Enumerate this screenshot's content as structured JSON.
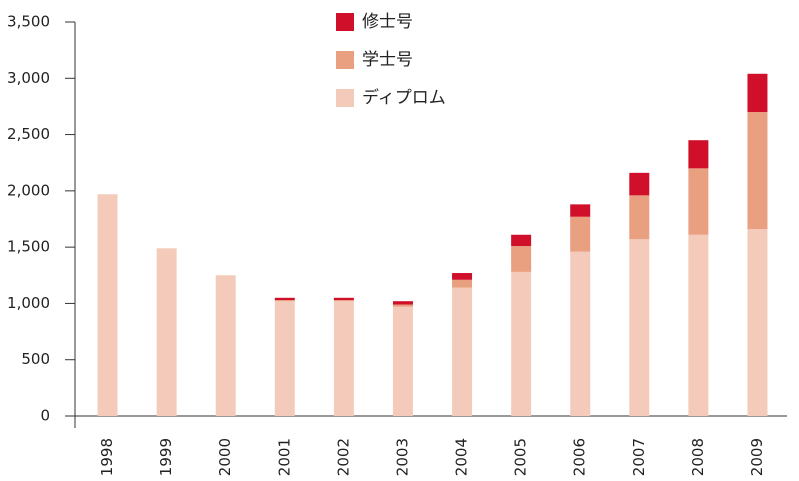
{
  "chart_data": {
    "type": "stacked_bar",
    "categories": [
      "1998",
      "1999",
      "2000",
      "2001",
      "2002",
      "2003",
      "2004",
      "2005",
      "2006",
      "2007",
      "2008",
      "2009"
    ],
    "series": [
      {
        "name": "ディプロム",
        "color": "#f4cbbb",
        "values": [
          1970,
          1490,
          1250,
          1020,
          1020,
          970,
          1140,
          1280,
          1460,
          1570,
          1610,
          1660
        ]
      },
      {
        "name": "学士号",
        "color": "#e9a080",
        "values": [
          0,
          0,
          0,
          10,
          10,
          20,
          70,
          230,
          310,
          390,
          590,
          1040
        ]
      },
      {
        "name": "修士号",
        "color": "#d0102a",
        "values": [
          0,
          0,
          0,
          20,
          20,
          30,
          60,
          100,
          110,
          200,
          250,
          340
        ]
      }
    ],
    "ylim": [
      0,
      3500
    ],
    "yticks": [
      0,
      500,
      {
        "value": 1000,
        "label": "1,000"
      },
      {
        "value": 1500,
        "label": "1,500"
      },
      {
        "value": 2000,
        "label": "2,000"
      },
      {
        "value": 2500,
        "label": "2,500"
      },
      {
        "value": 3000,
        "label": "3,000"
      },
      {
        "value": 3500,
        "label": "3,500"
      }
    ],
    "legend": "top"
  }
}
